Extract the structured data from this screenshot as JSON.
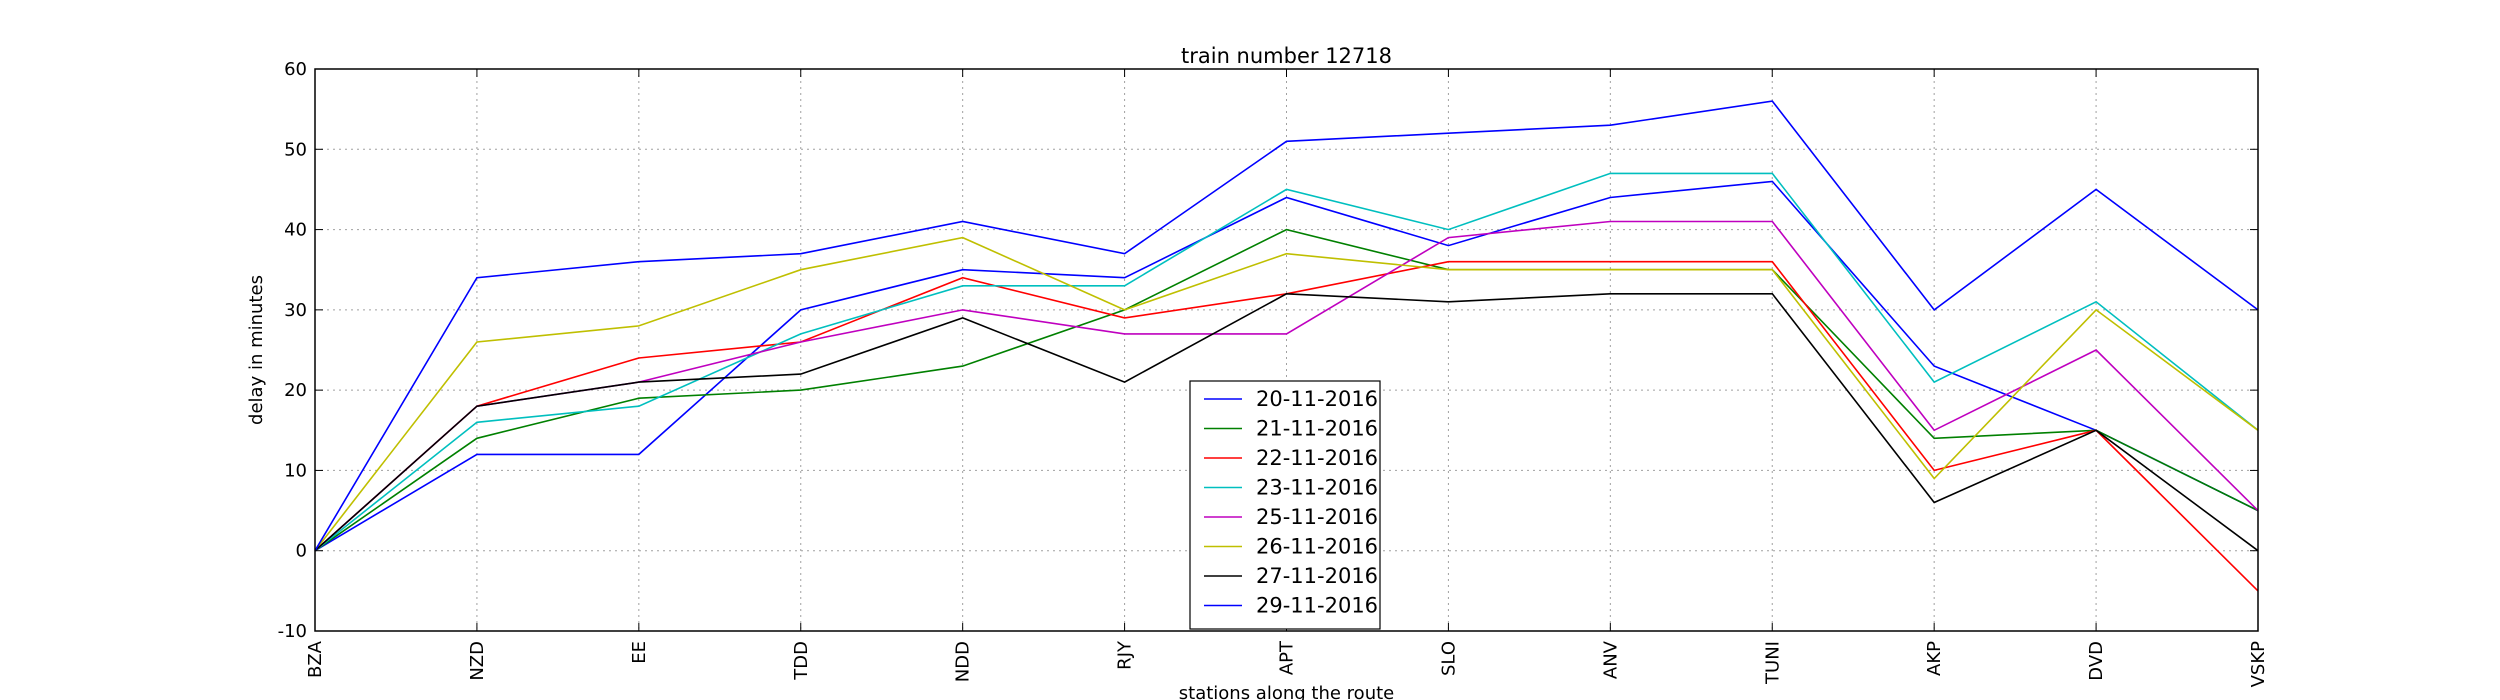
{
  "chart_data": {
    "type": "line",
    "title": "train number 12718",
    "xlabel": "stations along the route",
    "ylabel": "delay in minutes",
    "categories": [
      "BZA",
      "NZD",
      "EE",
      "TDD",
      "NDD",
      "RJY",
      "APT",
      "SLO",
      "ANV",
      "TUNI",
      "AKP",
      "DVD",
      "VSKP"
    ],
    "ylim": [
      -10,
      60
    ],
    "yticks": [
      -10,
      0,
      10,
      20,
      30,
      40,
      50,
      60
    ],
    "grid": true,
    "legend_position": "bottom-center",
    "series": [
      {
        "name": "20-11-2016",
        "color": "#0000ff",
        "values": [
          0,
          12,
          12,
          30,
          35,
          34,
          44,
          38,
          44,
          46,
          23,
          15,
          5
        ]
      },
      {
        "name": "21-11-2016",
        "color": "#008000",
        "values": [
          0,
          14,
          19,
          20,
          23,
          30,
          40,
          35,
          35,
          35,
          14,
          15,
          5
        ]
      },
      {
        "name": "22-11-2016",
        "color": "#ff0000",
        "values": [
          0,
          18,
          24,
          26,
          34,
          29,
          32,
          36,
          36,
          36,
          10,
          15,
          -5
        ]
      },
      {
        "name": "23-11-2016",
        "color": "#00bfbf",
        "values": [
          0,
          16,
          18,
          27,
          33,
          33,
          45,
          40,
          47,
          47,
          21,
          31,
          15
        ]
      },
      {
        "name": "25-11-2016",
        "color": "#bf00bf",
        "values": [
          0,
          18,
          21,
          26,
          30,
          27,
          27,
          39,
          41,
          41,
          15,
          25,
          5
        ]
      },
      {
        "name": "26-11-2016",
        "color": "#bfbf00",
        "values": [
          0,
          26,
          28,
          35,
          39,
          30,
          37,
          35,
          35,
          35,
          9,
          30,
          15
        ]
      },
      {
        "name": "27-11-2016",
        "color": "#000000",
        "values": [
          0,
          18,
          21,
          22,
          29,
          21,
          32,
          31,
          32,
          32,
          6,
          15,
          0
        ]
      },
      {
        "name": "29-11-2016",
        "color": "#0000ff",
        "values": [
          0,
          34,
          36,
          37,
          41,
          37,
          51,
          52,
          53,
          56,
          30,
          45,
          30
        ]
      }
    ]
  }
}
